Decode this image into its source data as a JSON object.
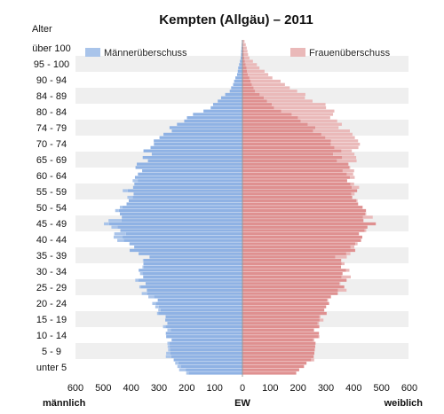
{
  "chart_data": {
    "type": "bar",
    "title": "Kempten (Allgäu) – 2011",
    "y_axis_title": "Alter",
    "xlabel_left": "männlich",
    "xlabel_center": "EW",
    "xlabel_right": "weiblich",
    "xlim": [
      -600,
      600
    ],
    "xticks": [
      600,
      500,
      400,
      300,
      200,
      100,
      0,
      100,
      200,
      300,
      400,
      500,
      600
    ],
    "age_labels": [
      "über 100",
      "95 - 100",
      "90 - 94",
      "84 - 89",
      "80 - 84",
      "74 - 79",
      "70 - 74",
      "65 - 69",
      "60 - 64",
      "55 - 59",
      "50 - 54",
      "45 - 49",
      "40 - 44",
      "35 - 39",
      "30 - 34",
      "25 - 29",
      "20 - 24",
      "15 - 19",
      "10 - 14",
      "5 - 9",
      "unter 5"
    ],
    "ages": [
      0,
      5,
      10,
      15,
      20,
      25,
      30,
      35,
      40,
      45,
      50,
      55,
      60,
      65,
      70,
      75,
      80,
      85,
      90,
      95,
      100
    ],
    "male": [
      210,
      265,
      270,
      275,
      300,
      355,
      375,
      350,
      435,
      480,
      420,
      410,
      375,
      350,
      315,
      240,
      120,
      45,
      20,
      6,
      2
    ],
    "female": [
      205,
      255,
      262,
      270,
      300,
      358,
      382,
      365,
      430,
      455,
      425,
      405,
      380,
      400,
      410,
      340,
      310,
      190,
      90,
      25,
      8
    ],
    "legend": [
      {
        "name": "Männerüberschuss",
        "color": "#a9c4ea"
      },
      {
        "name": "Frauenüberschuss",
        "color": "#eab9b9"
      }
    ],
    "colors": {
      "male": "#8fb2e4",
      "female": "#df9090",
      "male_surplus": "#a9c4ea",
      "female_surplus": "#eab9b9",
      "band": "#efefef"
    }
  }
}
